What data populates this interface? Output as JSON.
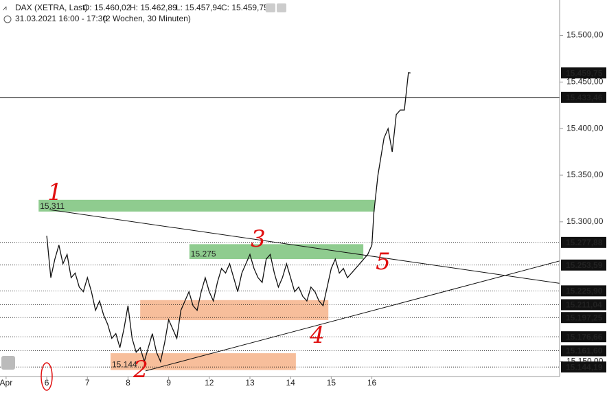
{
  "chart_data": {
    "type": "line",
    "header": {
      "instrument": "DAX (XETRA, Last)",
      "open": "O: 15.460,02",
      "high": "H: 15.462,89",
      "low": "L: 15.457,94",
      "close": "C: 15.459,75",
      "period": "31.03.2021 16:00 - 17:30",
      "range": "(2 Wochen, 30 Minuten)"
    },
    "x": [
      0,
      0.1,
      0.2,
      0.3,
      0.4,
      0.5,
      0.6,
      0.7,
      0.8,
      0.9,
      1,
      1.1,
      1.2,
      1.3,
      1.4,
      1.5,
      1.6,
      1.7,
      1.8,
      1.9,
      2,
      2.1,
      2.2,
      2.3,
      2.4,
      2.5,
      2.6,
      2.7,
      2.8,
      2.9,
      3,
      3.1,
      3.2,
      3.3,
      3.4,
      3.5,
      3.6,
      3.7,
      3.8,
      3.9,
      4,
      4.1,
      4.2,
      4.3,
      4.4,
      4.5,
      4.6,
      4.7,
      4.8,
      4.9,
      5,
      5.1,
      5.2,
      5.3,
      5.4,
      5.5,
      5.6,
      5.7,
      5.8,
      5.9,
      6,
      6.1,
      6.2,
      6.3,
      6.4,
      6.5,
      6.6,
      6.7,
      6.8,
      6.9,
      7,
      7.1,
      7.2,
      7.3,
      7.4,
      7.5,
      7.6,
      7.7,
      7.8,
      7.9,
      8,
      8.05,
      8.15,
      8.3,
      8.4,
      8.5,
      8.6,
      8.7,
      8.8,
      8.9,
      8.95
    ],
    "values": [
      15285,
      15240,
      15260,
      15275,
      15255,
      15265,
      15240,
      15245,
      15230,
      15225,
      15240,
      15225,
      15205,
      15215,
      15200,
      15190,
      15175,
      15180,
      15165,
      15185,
      15210,
      15175,
      15160,
      15165,
      15150,
      15165,
      15180,
      15160,
      15150,
      15170,
      15195,
      15185,
      15175,
      15205,
      15215,
      15225,
      15210,
      15205,
      15225,
      15240,
      15225,
      15215,
      15235,
      15250,
      15245,
      15255,
      15240,
      15225,
      15245,
      15255,
      15265,
      15250,
      15240,
      15235,
      15260,
      15265,
      15245,
      15230,
      15240,
      15255,
      15240,
      15225,
      15230,
      15220,
      15215,
      15230,
      15225,
      15215,
      15210,
      15230,
      15250,
      15260,
      15245,
      15250,
      15240,
      15245,
      15250,
      15255,
      15260,
      15265,
      15275,
      15310,
      15350,
      15390,
      15400,
      15375,
      15415,
      15420,
      15420,
      15460,
      15459.75
    ],
    "color": "#111111",
    "xlim": [
      -1.15,
      12.62
    ],
    "ylim": [
      15134,
      15538
    ],
    "xticks": [
      {
        "value": -1,
        "label": "Apr"
      },
      {
        "value": 0,
        "label": "6"
      },
      {
        "value": 1,
        "label": "7"
      },
      {
        "value": 2,
        "label": "8"
      },
      {
        "value": 3,
        "label": "9"
      },
      {
        "value": 4,
        "label": "12"
      },
      {
        "value": 5,
        "label": "13"
      },
      {
        "value": 6,
        "label": "14"
      },
      {
        "value": 7,
        "label": "15"
      },
      {
        "value": 8,
        "label": "16"
      }
    ],
    "yticks": [
      {
        "value": 15500,
        "label": "15.500,00"
      },
      {
        "value": 15450,
        "label": "15.450,00"
      },
      {
        "value": 15400,
        "label": "15.400,00"
      },
      {
        "value": 15350,
        "label": "15.350,00"
      },
      {
        "value": 15300,
        "label": "15.300,00"
      },
      {
        "value": 15150,
        "label": "15.150,00"
      }
    ],
    "levels": [
      {
        "value": 15459.75,
        "label": "15.459,75",
        "style": "none"
      },
      {
        "value": 15433.46,
        "label": "15.433,46",
        "style": "solid"
      },
      {
        "value": 15277.88,
        "label": "15.277,88",
        "style": "dotted"
      },
      {
        "value": 15253.59,
        "label": "15.253,59",
        "style": "dotted"
      },
      {
        "value": 15225.9,
        "label": "15.225,90",
        "style": "dotted"
      },
      {
        "value": 15211.04,
        "label": "15.211,04",
        "style": "dotted"
      },
      {
        "value": 15197.25,
        "label": "15.197,25",
        "style": "dotted"
      },
      {
        "value": 15176.66,
        "label": "15.176,66",
        "style": "dotted"
      },
      {
        "value": 15161.6,
        "label": "15.161,60",
        "style": "dotted"
      },
      {
        "value": 15144.19,
        "label": "15.144,19",
        "style": "dotted"
      }
    ],
    "zones": [
      {
        "label": "15.311",
        "color": "#8fcc8f",
        "x": [
          -0.2,
          8.07
        ],
        "y": [
          15311,
          15323.6
        ]
      },
      {
        "label": "15.275",
        "color": "#8fcc8f",
        "x": [
          3.51,
          7.79
        ],
        "y": [
          15260,
          15276
        ]
      },
      {
        "color": "#f7be9b",
        "x": [
          2.3,
          6.93
        ],
        "y": [
          15194.5,
          15216
        ]
      },
      {
        "label": "15.144",
        "color": "#f7be9b",
        "x": [
          1.57,
          6.13
        ],
        "y": [
          15141,
          15159
        ]
      }
    ],
    "trendlines": [
      {
        "x": [
          0.07,
          12.62
        ],
        "y": [
          15313,
          15234
        ]
      },
      {
        "x": [
          2.43,
          12.62
        ],
        "y": [
          15140,
          15258
        ]
      }
    ],
    "annotations": [
      "1",
      "2",
      "3",
      "4",
      "5"
    ]
  }
}
